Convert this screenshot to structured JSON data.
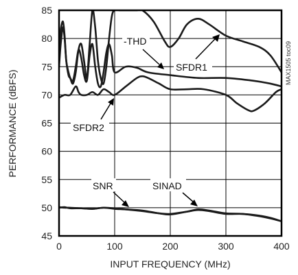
{
  "chart_data": {
    "type": "line",
    "xlabel": "INPUT FREQUENCY (MHz)",
    "ylabel": "PERFORMANCE (dBFS)",
    "xlim": [
      0,
      400
    ],
    "ylim": [
      45,
      85
    ],
    "xticks": [
      0,
      100,
      200,
      300,
      400
    ],
    "yticks": [
      45,
      50,
      55,
      60,
      65,
      70,
      75,
      80,
      85
    ],
    "grid": true,
    "part_number": "MAX1505 toc09",
    "series": [
      {
        "name": "SFDR1",
        "x": [
          0,
          3,
          7,
          10,
          13,
          17,
          20,
          25,
          30,
          35,
          40,
          45,
          50,
          55,
          60,
          65,
          70,
          75,
          80,
          85,
          90,
          95,
          100,
          110,
          120,
          130,
          140,
          150,
          170,
          190,
          200,
          215,
          230,
          250,
          270,
          300,
          330,
          360,
          380,
          400
        ],
        "y": [
          75,
          79,
          82,
          80,
          76,
          74,
          73,
          72,
          74,
          78,
          79,
          76,
          73,
          79,
          85,
          82,
          76,
          73,
          72,
          75,
          80,
          84,
          85,
          85,
          85,
          85,
          85,
          85,
          83,
          79.5,
          78.5,
          80,
          82.5,
          83.5,
          82.5,
          80.5,
          79.5,
          78.5,
          77,
          74
        ]
      },
      {
        "name": "-THD",
        "x": [
          0,
          3,
          7,
          10,
          13,
          17,
          20,
          25,
          30,
          35,
          40,
          45,
          50,
          55,
          60,
          65,
          70,
          75,
          80,
          85,
          90,
          95,
          100,
          120,
          140,
          160,
          200,
          250,
          300,
          350,
          380,
          400
        ],
        "y": [
          78,
          81.5,
          83,
          80.5,
          76,
          73.5,
          73,
          72.5,
          75,
          78,
          76.5,
          73.5,
          72.5,
          77,
          79,
          75,
          72,
          71.5,
          74,
          77.5,
          79,
          77,
          74,
          75,
          74.8,
          74,
          73.5,
          73,
          73,
          72.5,
          72,
          71.5
        ]
      },
      {
        "name": "SFDR2",
        "x": [
          0,
          10,
          20,
          30,
          35,
          40,
          50,
          60,
          70,
          80,
          90,
          100,
          120,
          140,
          150,
          160,
          180,
          200,
          230,
          260,
          300,
          320,
          340,
          350,
          370,
          390,
          400
        ],
        "y": [
          69.5,
          70,
          70,
          71.5,
          70.5,
          70,
          70,
          70.5,
          70,
          71,
          70.5,
          70,
          71.5,
          73,
          73.3,
          73,
          72,
          71,
          71,
          71,
          70,
          68.5,
          67.3,
          67.2,
          68.5,
          70.5,
          71
        ]
      },
      {
        "name": "SNR",
        "x": [
          0,
          10,
          20,
          40,
          60,
          80,
          100,
          120,
          150,
          180,
          200,
          230,
          250,
          270,
          300,
          330,
          360,
          380,
          400
        ],
        "y": [
          50,
          50.1,
          49.9,
          49.9,
          49.8,
          50,
          49.8,
          49.7,
          49.5,
          49,
          48.8,
          49.3,
          49.6,
          49.4,
          48.9,
          48.9,
          48.6,
          48.2,
          47.6
        ]
      },
      {
        "name": "SINAD",
        "x": [
          0,
          10,
          20,
          40,
          60,
          80,
          100,
          120,
          150,
          180,
          200,
          230,
          250,
          270,
          300,
          330,
          360,
          380,
          400
        ],
        "y": [
          50.1,
          50,
          50,
          49.9,
          49.8,
          50,
          49.9,
          49.7,
          49.4,
          49,
          48.9,
          49.3,
          49.7,
          49.5,
          49,
          48.9,
          48.5,
          48.1,
          47.6
        ]
      }
    ]
  }
}
